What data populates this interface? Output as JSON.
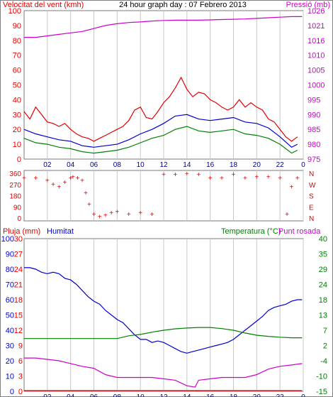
{
  "colors": {
    "wind": "#e00000",
    "gust": "#e00000",
    "pressure": "#cc00cc",
    "blue": "#0000cc",
    "green": "#008000",
    "grid": "#c8c8c8",
    "frame": "#7a7a7a"
  },
  "chart_data": [
    {
      "type": "line",
      "title": "24 hour graph day : 07 Febrero 2013",
      "ylabel_left": "Velocitat del vent (kmh)",
      "ylabel_right": "Pressió (mb)",
      "x_ticks": [
        "02",
        "04",
        "06",
        "08",
        "10",
        "12",
        "14",
        "16",
        "18",
        "20",
        "22",
        "0"
      ],
      "ylim_left": [
        0,
        100
      ],
      "yticks_left": [
        0,
        10,
        20,
        30,
        40,
        50,
        60,
        70,
        80,
        90,
        100
      ],
      "ylim_right": [
        975,
        1025
      ],
      "yticks_right": [
        975,
        980,
        985,
        990,
        995,
        1000,
        1005,
        1010,
        1016,
        1021,
        1026
      ],
      "grid": true,
      "series": [
        {
          "name": "Velocitat del vent",
          "axis": "left",
          "color": "#e00000",
          "x": [
            0,
            0.5,
            1,
            1.5,
            2,
            2.5,
            3,
            3.5,
            4,
            4.5,
            5,
            5.5,
            6,
            6.5,
            7,
            7.5,
            8,
            8.5,
            9,
            9.5,
            10,
            10.5,
            11,
            11.5,
            12,
            12.5,
            13,
            13.5,
            14,
            14.5,
            15,
            15.5,
            16,
            16.5,
            17,
            17.5,
            18,
            18.5,
            19,
            19.5,
            20,
            20.5,
            21,
            21.5,
            22,
            22.5,
            23,
            23.5
          ],
          "values": [
            32,
            27,
            35,
            30,
            25,
            24,
            22,
            24,
            20,
            17,
            15,
            14,
            12,
            14,
            16,
            18,
            20,
            22,
            26,
            33,
            35,
            28,
            27,
            32,
            38,
            42,
            48,
            55,
            47,
            42,
            45,
            44,
            40,
            38,
            35,
            33,
            35,
            40,
            35,
            38,
            35,
            33,
            27,
            25,
            20,
            15,
            12,
            15
          ]
        },
        {
          "name": "Pressió",
          "axis": "right",
          "color": "#cc00cc",
          "x": [
            0,
            1,
            2,
            3,
            4,
            5,
            6,
            7,
            8,
            9,
            10,
            11,
            12,
            13,
            14,
            15,
            16,
            17,
            18,
            19,
            20,
            21,
            22,
            23,
            23.9
          ],
          "values": [
            1016,
            1016,
            1016.5,
            1017,
            1017.5,
            1018,
            1019,
            1020,
            1020.6,
            1021,
            1021.2,
            1021.5,
            1021.7,
            1021.8,
            1021.8,
            1021.8,
            1021.9,
            1022,
            1022.1,
            1022.2,
            1022.4,
            1022.6,
            1022.8,
            1023,
            1023
          ]
        },
        {
          "name": "",
          "axis": "left",
          "color": "#0000cc",
          "x": [
            0,
            1,
            2,
            3,
            4,
            5,
            6,
            7,
            8,
            9,
            10,
            11,
            12,
            13,
            14,
            15,
            16,
            17,
            18,
            19,
            20,
            21,
            22,
            23,
            23.5
          ],
          "values": [
            20,
            17,
            15,
            13,
            12,
            9,
            8,
            9,
            10,
            13,
            17,
            20,
            24,
            29,
            30,
            27,
            26,
            27,
            28,
            25,
            24,
            21,
            15,
            8,
            10
          ]
        },
        {
          "name": "",
          "axis": "left",
          "color": "#008000",
          "x": [
            0,
            1,
            2,
            3,
            4,
            5,
            6,
            7,
            8,
            9,
            10,
            11,
            12,
            13,
            14,
            15,
            16,
            17,
            18,
            19,
            20,
            21,
            22,
            23,
            23.5
          ],
          "values": [
            14,
            11,
            10,
            8,
            7,
            5,
            4,
            5,
            6,
            8,
            11,
            14,
            16,
            20,
            22,
            19,
            18,
            19,
            20,
            17,
            16,
            14,
            10,
            4,
            6
          ]
        }
      ]
    },
    {
      "type": "scatter",
      "y_ticks": [
        "360",
        "270",
        "180",
        "90",
        "0"
      ],
      "y_ticks_right": [
        "N",
        "W",
        "S",
        "E",
        "N"
      ],
      "ylim": [
        0,
        360
      ],
      "color": "#e00000",
      "x": [
        0,
        1,
        2,
        2.5,
        3,
        3.5,
        4,
        4.2,
        4.6,
        5,
        5.3,
        5.6,
        6,
        6.5,
        7,
        7.5,
        8,
        9,
        10,
        11,
        12,
        13,
        14,
        15,
        16,
        17,
        18,
        19,
        20,
        21,
        22,
        22.6,
        23,
        23.5
      ],
      "values": [
        320,
        320,
        300,
        270,
        250,
        285,
        320,
        330,
        320,
        300,
        200,
        110,
        30,
        10,
        20,
        40,
        50,
        30,
        40,
        30,
        350,
        350,
        355,
        350,
        320,
        320,
        350,
        320,
        330,
        330,
        320,
        30,
        250,
        320
      ]
    },
    {
      "type": "line",
      "ylabel_left_1": "Pluja (mm)",
      "ylabel_left_2": "Humitat",
      "ylabel_right_1": "Temperatura (°C)",
      "ylabel_right_2": "Punt rosada",
      "x_ticks": [
        "02",
        "04",
        "06",
        "08",
        "10",
        "12",
        "14",
        "16",
        "18",
        "20",
        "22",
        "0"
      ],
      "ylim_humidity": [
        0,
        100
      ],
      "yticks_humidity": [
        0,
        10,
        20,
        30,
        40,
        50,
        60,
        70,
        80,
        90,
        100
      ],
      "yticks_rain": [
        0,
        3,
        6,
        9,
        12,
        15,
        18,
        21,
        24,
        27,
        30
      ],
      "ylim_temp": [
        -15,
        40
      ],
      "yticks_temp": [
        -15,
        -10,
        -4,
        2,
        7,
        13,
        18,
        24,
        29,
        35,
        40
      ],
      "series": [
        {
          "name": "Humitat",
          "color": "#0000cc",
          "x": [
            0,
            0.5,
            1,
            1.5,
            2,
            2.5,
            3,
            3.5,
            4,
            4.5,
            5,
            5.5,
            6,
            6.5,
            7,
            7.5,
            8,
            8.5,
            9,
            9.5,
            10,
            10.5,
            11,
            11.5,
            12,
            12.5,
            13,
            13.5,
            14,
            14.5,
            15,
            15.5,
            16,
            16.5,
            17,
            17.5,
            18,
            18.5,
            19,
            19.5,
            20,
            20.5,
            21,
            21.5,
            22,
            22.5,
            23,
            23.5,
            23.9
          ],
          "values": [
            81,
            81,
            80,
            78,
            77,
            78,
            77,
            74,
            73,
            70,
            66,
            62,
            59,
            57,
            53,
            50,
            47,
            45,
            41,
            37,
            34,
            34,
            32,
            33,
            32,
            30,
            28,
            26,
            25,
            26,
            27,
            28,
            29,
            30,
            31,
            32,
            34,
            37,
            40,
            43,
            46,
            49,
            53,
            55,
            56,
            57,
            59,
            60,
            60
          ]
        },
        {
          "name": "Temperatura",
          "color": "#008000",
          "x": [
            0,
            1,
            2,
            3,
            4,
            5,
            6,
            7,
            8,
            9,
            10,
            11,
            12,
            13,
            14,
            15,
            16,
            17,
            18,
            19,
            20,
            21,
            22,
            23,
            23.9
          ],
          "values": [
            4,
            4,
            4,
            4,
            4,
            4,
            4,
            4,
            4,
            5,
            5.5,
            6.3,
            7,
            7.5,
            7.8,
            8,
            8,
            7.6,
            7,
            6,
            5.2,
            4.8,
            4.5,
            4.3,
            4.3
          ]
        },
        {
          "name": "Punt rosada",
          "color": "#cc00cc",
          "x": [
            0,
            1,
            2,
            3,
            4,
            5,
            6,
            7,
            8,
            9,
            10,
            11,
            12,
            13,
            14,
            14.7,
            15,
            16,
            17,
            18,
            19,
            20,
            21,
            22,
            23,
            23.9
          ],
          "values": [
            -3,
            -3,
            -3.5,
            -4,
            -5,
            -6,
            -6.7,
            -9,
            -10,
            -10,
            -10,
            -10,
            -10.5,
            -11,
            -13,
            -13.5,
            -11,
            -10.5,
            -10,
            -10,
            -10,
            -9,
            -7,
            -6,
            -5.5,
            -5
          ]
        },
        {
          "name": "Pluja",
          "color": "#e00000",
          "x": [
            0,
            23.9
          ],
          "values": [
            0,
            0
          ]
        }
      ]
    }
  ]
}
